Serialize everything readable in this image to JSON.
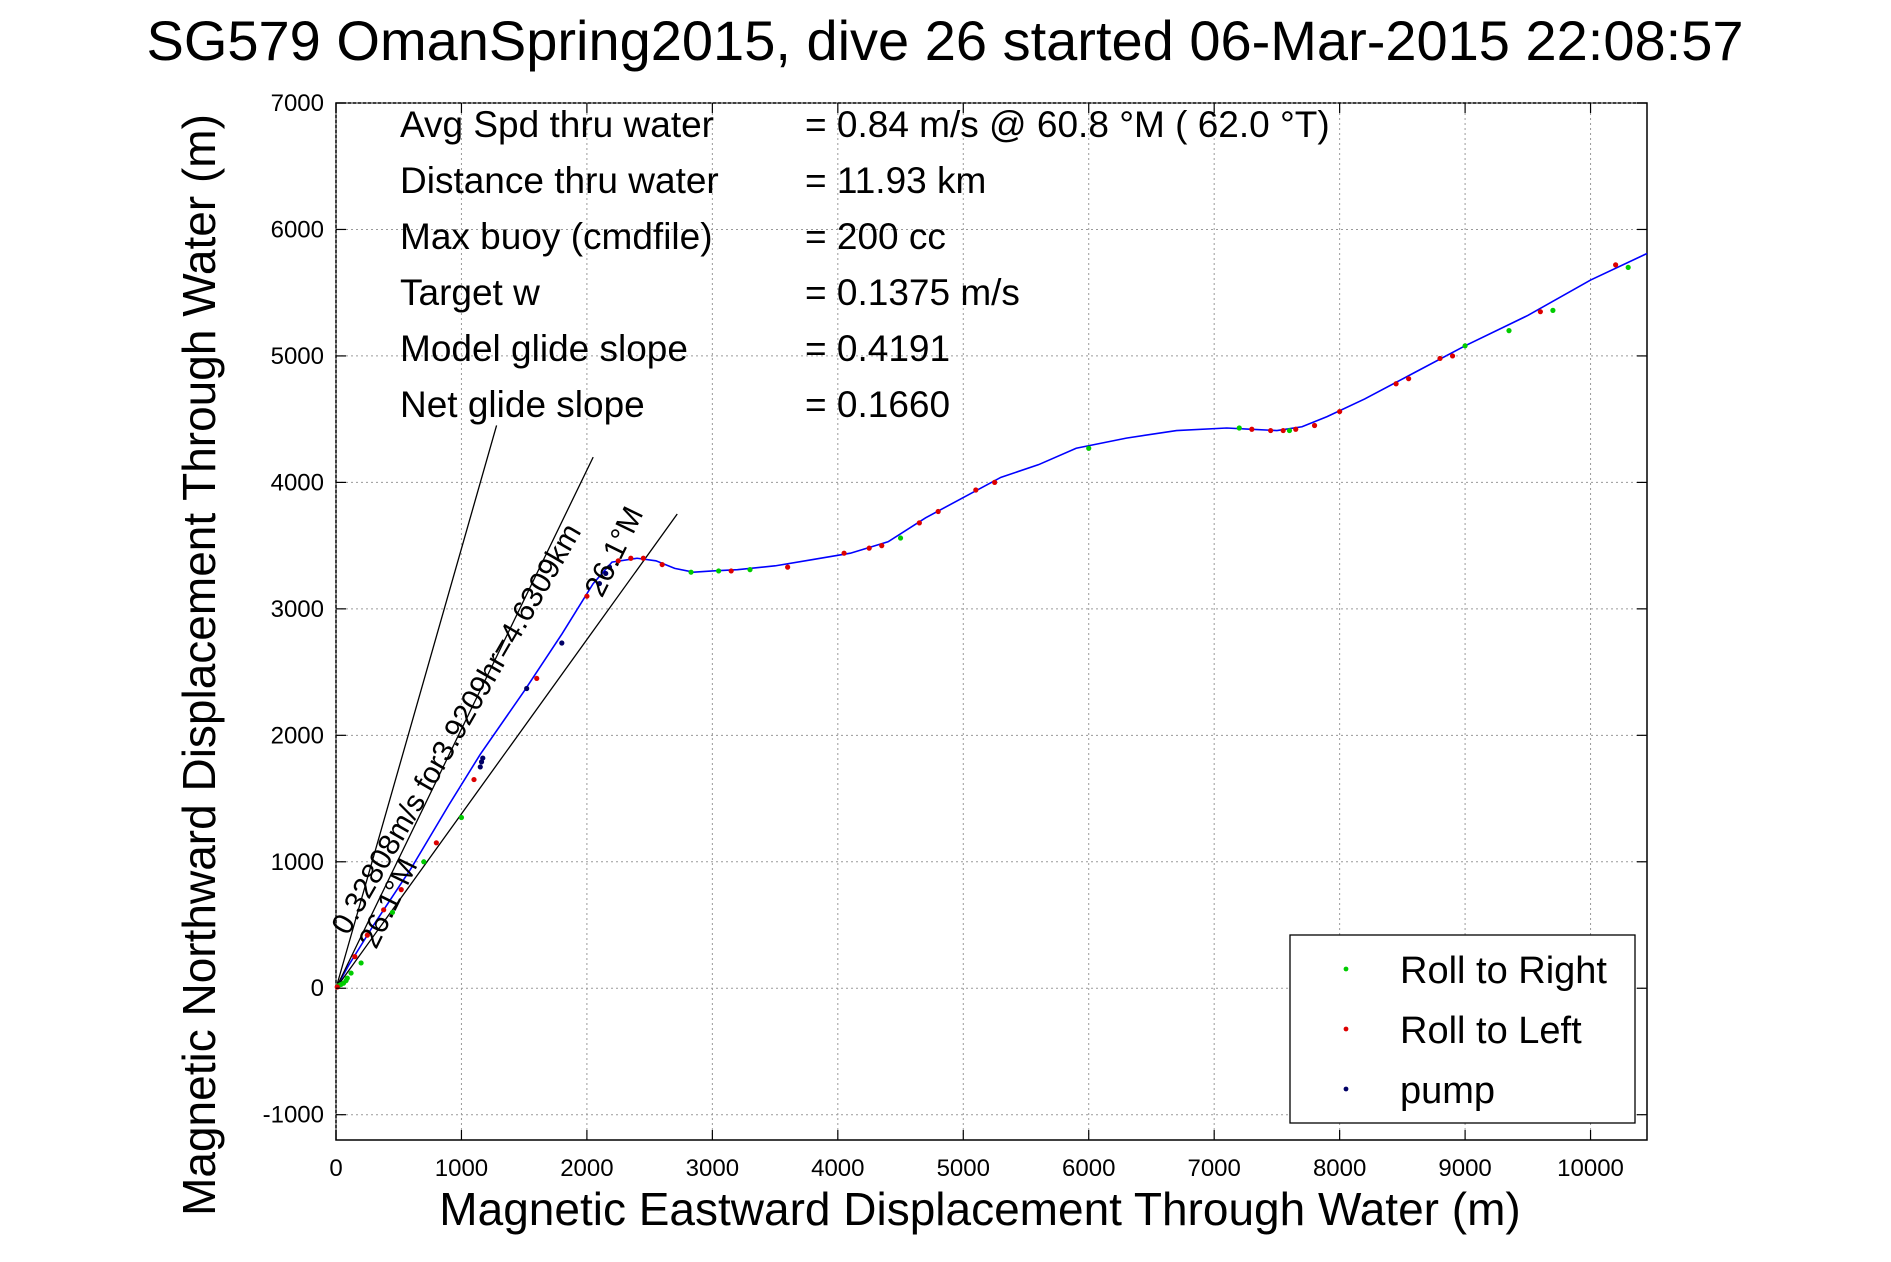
{
  "chart_data": {
    "type": "line",
    "title": "SG579 OmanSpring2015, dive 26 started 06-Mar-2015 22:08:57",
    "xlabel": "Magnetic Eastward Displacement Through Water (m)",
    "ylabel": "Magnetic Northward Displacement Through Water (m)",
    "xlim": [
      0,
      10450
    ],
    "ylim": [
      -1200,
      7000
    ],
    "xticks": [
      0,
      1000,
      2000,
      3000,
      4000,
      5000,
      6000,
      7000,
      8000,
      9000,
      10000
    ],
    "yticks": [
      -1000,
      0,
      1000,
      2000,
      3000,
      4000,
      5000,
      6000,
      7000
    ],
    "grid": true,
    "legend_position": "bottom-right",
    "stats": [
      {
        "label": "Avg Spd thru water",
        "value": "=  0.84 m/s @  60.8 °M ( 62.0 °T)"
      },
      {
        "label": "Distance thru water",
        "value": "= 11.93 km"
      },
      {
        "label": "Max buoy (cmdfile)",
        "value": "= 200 cc"
      },
      {
        "label": "Target w",
        "value": "= 0.1375 m/s"
      },
      {
        "label": "Model glide slope",
        "value": "= 0.4191"
      },
      {
        "label": "Net glide slope",
        "value": "= 0.1660"
      }
    ],
    "annotations": [
      {
        "text": "0.32808m/s for3.9209hr=4.6309km",
        "x": 95,
        "y": 410,
        "angle_deg": 30
      },
      {
        "text": "26.1°M",
        "x": 2120,
        "y": 3080,
        "angle_deg": 26.1
      },
      {
        "text": "26.1°M",
        "x": 320,
        "y": 300,
        "angle_deg": 26.1
      }
    ],
    "series": [
      {
        "name": "track",
        "color": "#0000ff",
        "x": [
          0,
          100,
          300,
          600,
          900,
          1150,
          1500,
          1800,
          2050,
          2200,
          2400,
          2550,
          2700,
          2850,
          3000,
          3200,
          3500,
          3800,
          4100,
          4400,
          4700,
          5000,
          5300,
          5600,
          5900,
          6300,
          6700,
          7100,
          7300,
          7500,
          7700,
          7900,
          8200,
          8600,
          9000,
          9500,
          10000,
          10450
        ],
        "y": [
          0,
          180,
          500,
          950,
          1450,
          1850,
          2350,
          2800,
          3200,
          3370,
          3400,
          3380,
          3320,
          3290,
          3300,
          3310,
          3340,
          3390,
          3440,
          3530,
          3720,
          3880,
          4040,
          4140,
          4270,
          4350,
          4410,
          4430,
          4420,
          4410,
          4440,
          4520,
          4660,
          4870,
          5080,
          5320,
          5600,
          5810
        ]
      },
      {
        "name": "glide-line-1",
        "color": "#000000",
        "x": [
          0,
          1280
        ],
        "y": [
          0,
          4450
        ]
      },
      {
        "name": "glide-line-2",
        "color": "#000000",
        "x": [
          0,
          2720
        ],
        "y": [
          0,
          3750
        ]
      },
      {
        "name": "glide-line-3",
        "color": "#000000",
        "x": [
          0,
          2050
        ],
        "y": [
          0,
          4200
        ]
      },
      {
        "name": "Roll to Right",
        "color": "#00cc00",
        "marker": "dot",
        "x": [
          20,
          40,
          60,
          80,
          90,
          120,
          200,
          450,
          700,
          1000,
          2830,
          3050,
          3300,
          4500,
          6000,
          7200,
          7600,
          9000,
          9350,
          9700,
          10300
        ],
        "y": [
          20,
          30,
          40,
          60,
          80,
          120,
          200,
          600,
          1000,
          1350,
          3290,
          3300,
          3310,
          3560,
          4270,
          4430,
          4410,
          5080,
          5200,
          5360,
          5700
        ]
      },
      {
        "name": "Roll to Left",
        "color": "#dd0000",
        "marker": "dot",
        "x": [
          10,
          150,
          250,
          380,
          520,
          800,
          1100,
          1600,
          2000,
          2250,
          2350,
          2450,
          2600,
          3150,
          3600,
          4050,
          4250,
          4350,
          4650,
          4800,
          5100,
          5250,
          7300,
          7450,
          7550,
          7650,
          7800,
          8000,
          8450,
          8550,
          8800,
          8900,
          9600,
          10200
        ],
        "y": [
          10,
          250,
          420,
          620,
          780,
          1150,
          1650,
          2450,
          3100,
          3380,
          3400,
          3400,
          3350,
          3300,
          3330,
          3440,
          3480,
          3500,
          3680,
          3770,
          3940,
          4000,
          4420,
          4410,
          4410,
          4420,
          4450,
          4560,
          4780,
          4820,
          4980,
          5000,
          5350,
          5720
        ]
      },
      {
        "name": "pump",
        "color": "#000066",
        "marker": "dot",
        "x": [
          1150,
          1160,
          1170,
          1520,
          1800,
          2100,
          2150,
          2180
        ],
        "y": [
          1750,
          1790,
          1820,
          2370,
          2730,
          3200,
          3280,
          3330
        ]
      }
    ],
    "legend": [
      {
        "label": "Roll to Right",
        "color": "#00cc00"
      },
      {
        "label": "Roll to Left",
        "color": "#dd0000"
      },
      {
        "label": "pump",
        "color": "#000066"
      }
    ]
  }
}
